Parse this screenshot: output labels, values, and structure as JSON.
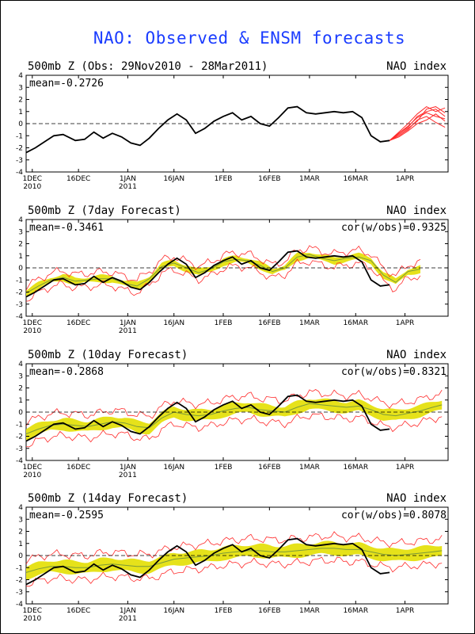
{
  "title": "NAO: Observed & ENSM forecasts",
  "colors": {
    "observed": "#000000",
    "ensemble": "#ff2a2a",
    "spread": "#e6e21a",
    "mean_line": "#7a9a3a",
    "title": "#1a3cff"
  },
  "x_ticks": [
    {
      "day": 1,
      "label": "1DEC",
      "sub": "2010"
    },
    {
      "day": 16,
      "label": "16DEC",
      "sub": ""
    },
    {
      "day": 32,
      "label": "1JAN",
      "sub": "2011"
    },
    {
      "day": 47,
      "label": "16JAN",
      "sub": ""
    },
    {
      "day": 63,
      "label": "1FEB",
      "sub": ""
    },
    {
      "day": 78,
      "label": "16FEB",
      "sub": ""
    },
    {
      "day": 91,
      "label": "1MAR",
      "sub": ""
    },
    {
      "day": 106,
      "label": "16MAR",
      "sub": ""
    },
    {
      "day": 122,
      "label": "1APR",
      "sub": ""
    }
  ],
  "chart_data": [
    {
      "type": "line",
      "title": "500mb Z (Obs: 29Nov2010 - 28Mar2011)",
      "right_label": "NAO index",
      "mean_label": "mean=-0.2726",
      "cor_label": "",
      "ylim": [
        -4,
        4
      ],
      "xlim_days": [
        -1,
        136
      ],
      "yticks": [
        -4,
        -3,
        -2,
        -1,
        0,
        1,
        2,
        3,
        4
      ],
      "zero_line": "dashed",
      "observed": {
        "x": [
          -1,
          2,
          5,
          8,
          11,
          15,
          18,
          21,
          24,
          27,
          30,
          33,
          36,
          39,
          42,
          45,
          48,
          51,
          54,
          57,
          60,
          63,
          66,
          69,
          72,
          75,
          78,
          81,
          84,
          87,
          90,
          93,
          96,
          99,
          102,
          105,
          108,
          111,
          114,
          117
        ],
        "y": [
          -2.4,
          -2.0,
          -1.5,
          -1.0,
          -0.9,
          -1.4,
          -1.3,
          -0.7,
          -1.2,
          -0.8,
          -1.1,
          -1.6,
          -1.8,
          -1.2,
          -0.4,
          0.3,
          0.8,
          0.3,
          -0.8,
          -0.4,
          0.2,
          0.6,
          0.9,
          0.3,
          0.6,
          0.0,
          -0.2,
          0.5,
          1.3,
          1.4,
          0.9,
          0.8,
          0.9,
          1.0,
          0.9,
          1.0,
          0.5,
          -1.0,
          -1.5,
          -1.4
        ]
      },
      "ensemble_start_day": 117,
      "ensemble_members": [
        {
          "x": [
            117,
            120,
            123,
            126,
            129,
            132,
            135
          ],
          "y": [
            -1.4,
            -0.8,
            -0.2,
            0.5,
            0.9,
            0.6,
            0.4
          ]
        },
        {
          "x": [
            117,
            120,
            123,
            126,
            129,
            132,
            135
          ],
          "y": [
            -1.4,
            -0.9,
            -0.4,
            0.2,
            1.2,
            1.4,
            0.9
          ]
        },
        {
          "x": [
            117,
            120,
            123,
            126,
            129,
            132,
            135
          ],
          "y": [
            -1.4,
            -1.0,
            -0.5,
            0.3,
            0.6,
            0.1,
            -0.3
          ]
        },
        {
          "x": [
            117,
            120,
            123,
            126,
            129,
            132,
            135
          ],
          "y": [
            -1.4,
            -0.7,
            0.0,
            0.8,
            1.4,
            1.0,
            1.3
          ]
        },
        {
          "x": [
            117,
            120,
            123,
            126,
            129,
            132,
            135
          ],
          "y": [
            -1.4,
            -1.1,
            -0.6,
            0.0,
            0.3,
            0.8,
            0.2
          ]
        },
        {
          "x": [
            117,
            120,
            123,
            126,
            129,
            132,
            135
          ],
          "y": [
            -1.4,
            -0.8,
            -0.3,
            0.6,
            1.0,
            1.2,
            0.6
          ]
        }
      ]
    },
    {
      "type": "line",
      "title": "500mb Z (7day Forecast)",
      "right_label": "NAO index",
      "mean_label": "mean=-0.3461",
      "cor_label": "cor(w/obs)=0.9325",
      "ylim": [
        -4,
        4
      ],
      "xlim_days": [
        -1,
        136
      ],
      "yticks": [
        -4,
        -3,
        -2,
        -1,
        0,
        1,
        2,
        3,
        4
      ],
      "zero_line": "dashed",
      "spread_half": 0.25,
      "envelope_half": 0.55,
      "observed": {
        "x": [
          -1,
          2,
          5,
          8,
          11,
          15,
          18,
          21,
          24,
          27,
          30,
          33,
          36,
          39,
          42,
          45,
          48,
          51,
          54,
          57,
          60,
          63,
          66,
          69,
          72,
          75,
          78,
          81,
          84,
          87,
          90,
          93,
          96,
          99,
          102,
          105,
          108,
          111,
          114,
          117
        ],
        "y": [
          -2.4,
          -2.0,
          -1.5,
          -1.0,
          -0.9,
          -1.4,
          -1.3,
          -0.7,
          -1.2,
          -0.8,
          -1.1,
          -1.6,
          -1.8,
          -1.2,
          -0.4,
          0.3,
          0.8,
          0.3,
          -0.8,
          -0.4,
          0.2,
          0.6,
          0.9,
          0.3,
          0.6,
          0.0,
          -0.2,
          0.5,
          1.3,
          1.4,
          0.9,
          0.8,
          0.9,
          1.0,
          0.9,
          1.0,
          0.5,
          -1.0,
          -1.5,
          -1.4
        ]
      },
      "ensemble_mean": {
        "x": [
          -1,
          3,
          7,
          11,
          15,
          19,
          23,
          27,
          31,
          35,
          39,
          43,
          47,
          51,
          55,
          59,
          63,
          67,
          71,
          75,
          79,
          83,
          87,
          91,
          95,
          99,
          103,
          107,
          111,
          115,
          119,
          123,
          127
        ],
        "y": [
          -2.1,
          -1.5,
          -1.0,
          -0.8,
          -1.1,
          -1.0,
          -0.9,
          -0.9,
          -1.3,
          -1.5,
          -0.9,
          0.1,
          0.4,
          0.0,
          -0.4,
          -0.1,
          0.5,
          0.7,
          0.6,
          0.2,
          -0.3,
          0.0,
          0.9,
          1.1,
          0.8,
          0.6,
          0.8,
          0.9,
          0.6,
          -0.6,
          -1.2,
          -0.3,
          -0.1
        ]
      }
    },
    {
      "type": "line",
      "title": "500mb Z (10day Forecast)",
      "right_label": "NAO index",
      "mean_label": "mean=-0.2868",
      "cor_label": "cor(w/obs)=0.8321",
      "ylim": [
        -4,
        4
      ],
      "xlim_days": [
        -1,
        136
      ],
      "yticks": [
        -4,
        -3,
        -2,
        -1,
        0,
        1,
        2,
        3,
        4
      ],
      "zero_line": "dashed",
      "spread_half": 0.45,
      "envelope_half": 0.95,
      "observed": {
        "x": [
          -1,
          2,
          5,
          8,
          11,
          15,
          18,
          21,
          24,
          27,
          30,
          33,
          36,
          39,
          42,
          45,
          48,
          51,
          54,
          57,
          60,
          63,
          66,
          69,
          72,
          75,
          78,
          81,
          84,
          87,
          90,
          93,
          96,
          99,
          102,
          105,
          108,
          111,
          114,
          117
        ],
        "y": [
          -2.4,
          -2.0,
          -1.5,
          -1.0,
          -0.9,
          -1.4,
          -1.3,
          -0.7,
          -1.2,
          -0.8,
          -1.1,
          -1.6,
          -1.8,
          -1.2,
          -0.4,
          0.3,
          0.8,
          0.3,
          -0.8,
          -0.4,
          0.2,
          0.6,
          0.9,
          0.3,
          0.6,
          0.0,
          -0.2,
          0.5,
          1.3,
          1.4,
          0.9,
          0.8,
          0.9,
          1.0,
          0.9,
          1.0,
          0.5,
          -1.0,
          -1.5,
          -1.4
        ]
      },
      "ensemble_mean": {
        "x": [
          -1,
          3,
          7,
          11,
          15,
          19,
          23,
          27,
          31,
          35,
          39,
          43,
          47,
          51,
          55,
          59,
          63,
          67,
          71,
          75,
          79,
          83,
          87,
          91,
          95,
          99,
          103,
          107,
          111,
          115,
          119,
          123,
          127,
          131,
          134
        ],
        "y": [
          -1.8,
          -1.4,
          -1.1,
          -1.0,
          -1.1,
          -1.2,
          -1.0,
          -0.8,
          -0.9,
          -1.2,
          -1.3,
          -0.5,
          0.0,
          -0.2,
          -0.3,
          -0.2,
          0.1,
          0.3,
          0.4,
          0.2,
          0.1,
          0.0,
          0.4,
          0.7,
          0.6,
          0.5,
          0.4,
          0.5,
          0.2,
          -0.2,
          -0.3,
          -0.1,
          0.1,
          0.4,
          0.6
        ]
      }
    },
    {
      "type": "line",
      "title": "500mb Z (14day Forecast)",
      "right_label": "NAO index",
      "mean_label": "mean=-0.2595",
      "cor_label": "cor(w/obs)=0.8078",
      "ylim": [
        -4,
        4
      ],
      "xlim_days": [
        -1,
        136
      ],
      "yticks": [
        -4,
        -3,
        -2,
        -1,
        0,
        1,
        2,
        3,
        4
      ],
      "zero_line": "dashed",
      "spread_half": 0.5,
      "envelope_half": 1.0,
      "observed": {
        "x": [
          -1,
          2,
          5,
          8,
          11,
          15,
          18,
          21,
          24,
          27,
          30,
          33,
          36,
          39,
          42,
          45,
          48,
          51,
          54,
          57,
          60,
          63,
          66,
          69,
          72,
          75,
          78,
          81,
          84,
          87,
          90,
          93,
          96,
          99,
          102,
          105,
          108,
          111,
          114,
          117
        ],
        "y": [
          -2.4,
          -2.0,
          -1.5,
          -1.0,
          -0.9,
          -1.4,
          -1.3,
          -0.7,
          -1.2,
          -0.8,
          -1.1,
          -1.6,
          -1.8,
          -1.2,
          -0.4,
          0.3,
          0.8,
          0.3,
          -0.8,
          -0.4,
          0.2,
          0.6,
          0.9,
          0.3,
          0.6,
          0.0,
          -0.2,
          0.5,
          1.3,
          1.4,
          0.9,
          0.8,
          0.9,
          1.0,
          0.9,
          1.0,
          0.5,
          -1.0,
          -1.5,
          -1.4
        ]
      },
      "ensemble_mean": {
        "x": [
          -1,
          3,
          7,
          11,
          15,
          19,
          23,
          27,
          31,
          35,
          39,
          43,
          47,
          51,
          55,
          59,
          63,
          67,
          71,
          75,
          79,
          83,
          87,
          91,
          95,
          99,
          103,
          107,
          111,
          115,
          119,
          123,
          127,
          131,
          134
        ],
        "y": [
          -1.4,
          -1.1,
          -0.9,
          -0.9,
          -1.0,
          -1.0,
          -0.8,
          -0.7,
          -0.8,
          -0.9,
          -0.9,
          -0.6,
          -0.3,
          -0.2,
          -0.1,
          0.0,
          0.2,
          0.3,
          0.4,
          0.4,
          0.3,
          0.3,
          0.4,
          0.5,
          0.6,
          0.6,
          0.5,
          0.5,
          0.3,
          0.1,
          0.0,
          0.1,
          0.2,
          0.3,
          0.4
        ]
      }
    }
  ]
}
